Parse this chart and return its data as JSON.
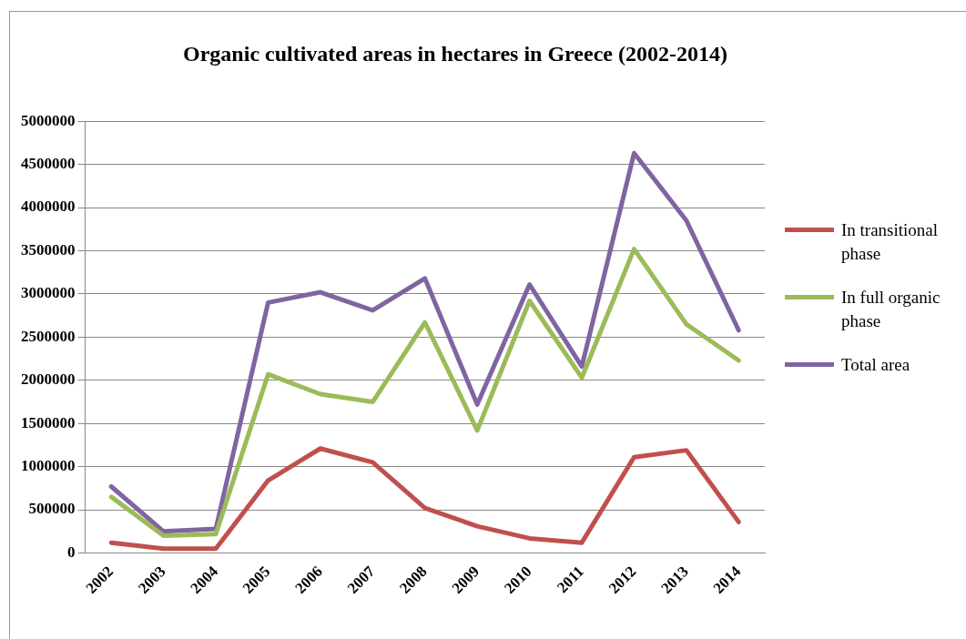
{
  "chart_data": {
    "type": "line",
    "title": "Organic cultivated areas in hectares in Greece (2002-2014)",
    "categories": [
      "2002",
      "2003",
      "2004",
      "2005",
      "2006",
      "2007",
      "2008",
      "2009",
      "2010",
      "2011",
      "2012",
      "2013",
      "2014"
    ],
    "series": [
      {
        "name": "In transitional phase",
        "color": "#c0504d",
        "values": [
          120000,
          50000,
          50000,
          840000,
          1210000,
          1050000,
          520000,
          310000,
          170000,
          120000,
          1110000,
          1190000,
          360000
        ]
      },
      {
        "name": "In full organic phase",
        "color": "#9bbb59",
        "values": [
          650000,
          200000,
          220000,
          2070000,
          1840000,
          1750000,
          2670000,
          1420000,
          2920000,
          2030000,
          3520000,
          2650000,
          2230000
        ]
      },
      {
        "name": "Total area",
        "color": "#8064a2",
        "values": [
          770000,
          250000,
          280000,
          2900000,
          3020000,
          2810000,
          3180000,
          1720000,
          3110000,
          2160000,
          4630000,
          3850000,
          2580000
        ]
      }
    ],
    "ylim": [
      0,
      5000000
    ],
    "yticks": [
      0,
      500000,
      1000000,
      1500000,
      2000000,
      2500000,
      3000000,
      3500000,
      4000000,
      4500000,
      5000000
    ],
    "grid": "y",
    "legend": "right",
    "marker": "none",
    "line_style": "solid"
  }
}
